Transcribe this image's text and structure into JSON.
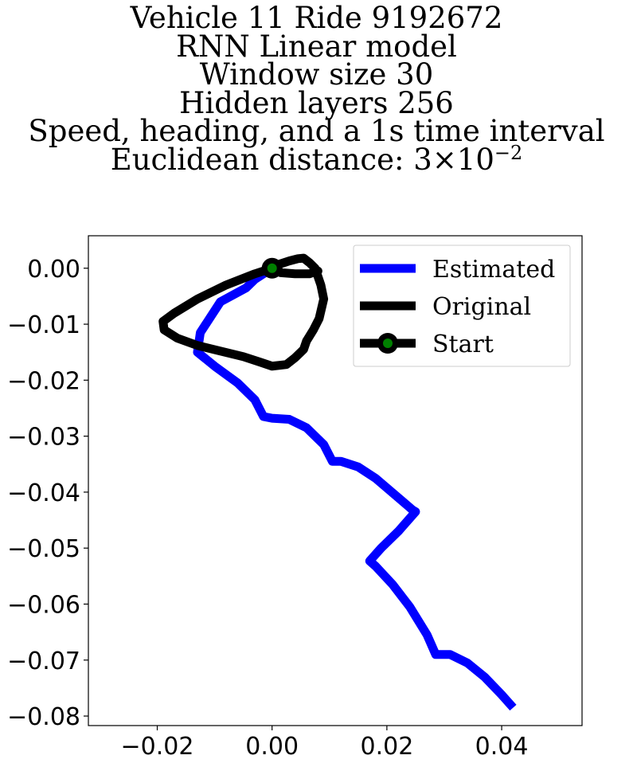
{
  "chart_data": {
    "type": "line",
    "title_lines": [
      "Vehicle 11 Ride 9192672",
      "RNN Linear model",
      "Window size 30",
      "Hidden layers 256",
      "Speed, heading, and a 1s time interval"
    ],
    "title_distance_prefix": "Euclidean distance: 3×10",
    "title_distance_exponent": "−2",
    "xlim": [
      -0.032,
      0.054
    ],
    "ylim": [
      -0.0817,
      0.0058
    ],
    "xticks": [
      -0.02,
      0.0,
      0.02,
      0.04
    ],
    "xtick_labels": [
      "−0.02",
      "0.00",
      "0.02",
      "0.04"
    ],
    "yticks": [
      0.0,
      -0.01,
      -0.02,
      -0.03,
      -0.04,
      -0.05,
      -0.06,
      -0.07,
      -0.08
    ],
    "ytick_labels": [
      "0.00",
      "−0.01",
      "−0.02",
      "−0.03",
      "−0.04",
      "−0.05",
      "−0.06",
      "−0.07",
      "−0.08"
    ],
    "legend_position": "top-right",
    "legend_labels": [
      "Estimated",
      "Original",
      "Start"
    ],
    "series": [
      {
        "name": "Estimated",
        "color": "#0000ff",
        "x": [
          0.0,
          -0.003,
          -0.0045,
          -0.009,
          -0.0125,
          -0.013,
          -0.01,
          -0.006,
          -0.003,
          -0.0015,
          0.0,
          0.003,
          0.006,
          0.009,
          0.0105,
          0.012,
          0.015,
          0.018,
          0.022,
          0.0245,
          0.025,
          0.022,
          0.019,
          0.017,
          0.018,
          0.021,
          0.024,
          0.027,
          0.0285,
          0.031,
          0.034,
          0.037,
          0.04,
          0.042
        ],
        "y": [
          0.0,
          -0.002,
          -0.0035,
          -0.006,
          -0.0115,
          -0.015,
          -0.0175,
          -0.0205,
          -0.0235,
          -0.0265,
          -0.0268,
          -0.027,
          -0.0285,
          -0.0315,
          -0.0345,
          -0.0345,
          -0.0355,
          -0.0375,
          -0.041,
          -0.0432,
          -0.0435,
          -0.047,
          -0.05,
          -0.0523,
          -0.0532,
          -0.0565,
          -0.0605,
          -0.0655,
          -0.069,
          -0.069,
          -0.0705,
          -0.073,
          -0.0762,
          -0.0785
        ]
      },
      {
        "name": "Original",
        "color": "#000000",
        "x": [
          0.0,
          -0.003,
          -0.008,
          -0.013,
          -0.017,
          -0.019,
          -0.0188,
          -0.0165,
          -0.013,
          -0.009,
          -0.005,
          -0.002,
          0.0,
          0.0025,
          0.004,
          0.0055,
          0.006,
          0.0072,
          0.0082,
          0.009,
          0.0085,
          0.008,
          0.0075,
          0.0065,
          0.0055,
          0.0045,
          0.003,
          0.0012,
          0.0005,
          0.0015,
          0.004,
          0.0065,
          0.008
        ],
        "y": [
          0.0,
          -0.001,
          -0.003,
          -0.0055,
          -0.008,
          -0.0095,
          -0.011,
          -0.0125,
          -0.0138,
          -0.0148,
          -0.0158,
          -0.0168,
          -0.0175,
          -0.0172,
          -0.016,
          -0.0145,
          -0.013,
          -0.011,
          -0.009,
          -0.0055,
          -0.003,
          -0.0015,
          0.0,
          0.001,
          0.0018,
          0.0017,
          0.0013,
          0.0007,
          0.0002,
          -0.0008,
          -0.001,
          -0.001,
          -0.0005
        ]
      },
      {
        "name": "Start",
        "color": "#008000",
        "edge_color": "#000000",
        "x": [
          0.0
        ],
        "y": [
          0.0
        ]
      }
    ]
  }
}
